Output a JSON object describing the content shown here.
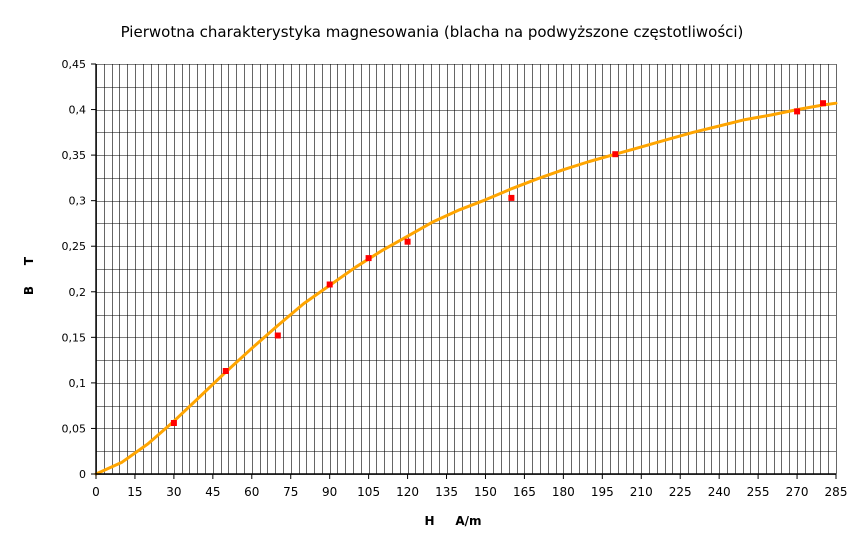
{
  "chart_data": {
    "type": "scatter",
    "title": "Pierwotna charakterystyka magnesowania (blacha na podwyższone częstotliwości)",
    "xlabel": "H     A/m",
    "ylabel": "B     T",
    "xlim": [
      0,
      285
    ],
    "ylim": [
      0,
      0.45
    ],
    "x_ticks": [
      0,
      15,
      30,
      45,
      60,
      75,
      90,
      105,
      120,
      135,
      150,
      165,
      180,
      195,
      210,
      225,
      240,
      255,
      270,
      285
    ],
    "x_tick_labels": [
      "0",
      "15",
      "30",
      "45",
      "60",
      "75",
      "90",
      "105",
      "120",
      "135",
      "150",
      "165",
      "180",
      "195",
      "210",
      "225",
      "240",
      "255",
      "270",
      "285"
    ],
    "y_ticks": [
      0,
      0.05,
      0.1,
      0.15,
      0.2,
      0.25,
      0.3,
      0.35,
      0.4,
      0.45
    ],
    "y_tick_labels": [
      "0",
      "0,05",
      "0,1",
      "0,15",
      "0,2",
      "0,25",
      "0,3",
      "0,35",
      "0,4",
      "0,45"
    ],
    "grid": true,
    "series": [
      {
        "kind": "points",
        "color": "#ff0000",
        "x": [
          30,
          50,
          70,
          90,
          105,
          120,
          160,
          200,
          270,
          280
        ],
        "y": [
          0.056,
          0.113,
          0.152,
          0.208,
          0.237,
          0.255,
          0.303,
          0.351,
          0.398,
          0.407
        ]
      },
      {
        "kind": "curve",
        "color": "#ffa500",
        "x": [
          0,
          10,
          20,
          30,
          40,
          50,
          60,
          70,
          80,
          90,
          100,
          110,
          120,
          130,
          140,
          150,
          160,
          170,
          180,
          190,
          200,
          210,
          220,
          230,
          240,
          250,
          260,
          270,
          280,
          285
        ],
        "y": [
          0,
          0.013,
          0.033,
          0.058,
          0.085,
          0.112,
          0.138,
          0.163,
          0.187,
          0.207,
          0.227,
          0.245,
          0.261,
          0.277,
          0.29,
          0.301,
          0.313,
          0.324,
          0.334,
          0.343,
          0.351,
          0.359,
          0.367,
          0.375,
          0.382,
          0.389,
          0.394,
          0.4,
          0.405,
          0.407
        ]
      }
    ]
  }
}
